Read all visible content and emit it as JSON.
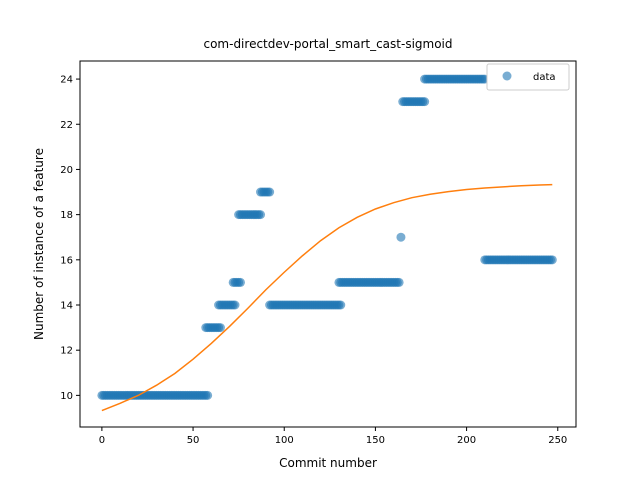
{
  "chart_data": {
    "type": "scatter",
    "title": "com-directdev-portal_smart_cast-sigmoid",
    "xlabel": "Commit number",
    "ylabel": "Number of instance of a feature",
    "xlim": [
      -12,
      260
    ],
    "ylim": [
      8.6,
      24.8
    ],
    "xticks": [
      0,
      50,
      100,
      150,
      200,
      250
    ],
    "yticks": [
      10,
      12,
      14,
      16,
      18,
      20,
      22,
      24
    ],
    "legend": {
      "entries": [
        "data"
      ],
      "placement": "upper right"
    },
    "colors": {
      "data": "#1f77b4",
      "fit": "#ff7f0e"
    },
    "data_segments": [
      {
        "x_start": 0,
        "x_end": 58,
        "y": 10
      },
      {
        "x_start": 57,
        "x_end": 65,
        "y": 13
      },
      {
        "x_start": 64,
        "x_end": 73,
        "y": 14
      },
      {
        "x_start": 72,
        "x_end": 76,
        "y": 15
      },
      {
        "x_start": 75,
        "x_end": 87,
        "y": 18
      },
      {
        "x_start": 87,
        "x_end": 92,
        "y": 19
      },
      {
        "x_start": 92,
        "x_end": 131,
        "y": 14
      },
      {
        "x_start": 130,
        "x_end": 163,
        "y": 15
      },
      {
        "x_start": 164,
        "x_end": 164,
        "y": 17
      },
      {
        "x_start": 165,
        "x_end": 177,
        "y": 23
      },
      {
        "x_start": 177,
        "x_end": 210,
        "y": 24
      },
      {
        "x_start": 210,
        "x_end": 247,
        "y": 16
      }
    ],
    "fit_curve": {
      "name": "sigmoid",
      "points": [
        [
          0,
          9.33
        ],
        [
          10,
          9.65
        ],
        [
          20,
          10.0
        ],
        [
          30,
          10.45
        ],
        [
          40,
          10.97
        ],
        [
          50,
          11.6
        ],
        [
          60,
          12.3
        ],
        [
          70,
          13.05
        ],
        [
          80,
          13.85
        ],
        [
          90,
          14.68
        ],
        [
          100,
          15.45
        ],
        [
          110,
          16.18
        ],
        [
          120,
          16.85
        ],
        [
          130,
          17.42
        ],
        [
          140,
          17.88
        ],
        [
          150,
          18.25
        ],
        [
          160,
          18.53
        ],
        [
          170,
          18.75
        ],
        [
          180,
          18.9
        ],
        [
          190,
          19.02
        ],
        [
          200,
          19.11
        ],
        [
          210,
          19.18
        ],
        [
          220,
          19.23
        ],
        [
          230,
          19.28
        ],
        [
          240,
          19.31
        ],
        [
          247,
          19.33
        ]
      ]
    }
  }
}
